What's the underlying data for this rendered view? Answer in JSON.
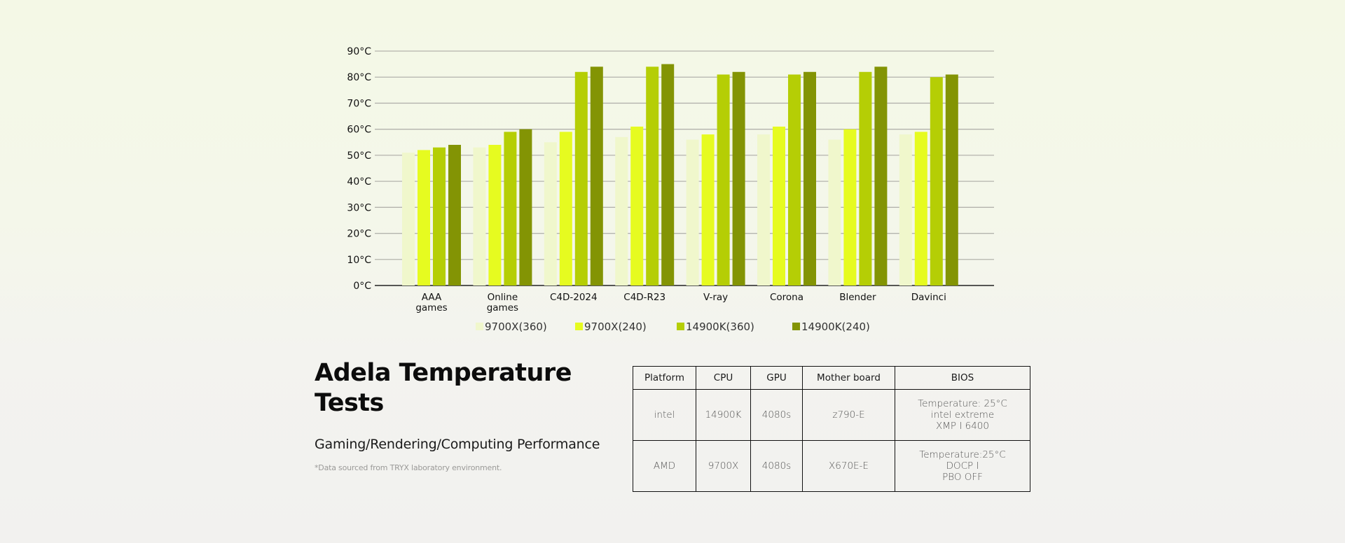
{
  "chart_data": {
    "type": "bar",
    "title": "",
    "xlabel": "",
    "ylabel": "",
    "ylim": [
      0,
      90
    ],
    "ytick_step": 10,
    "ytick_suffix": "°C",
    "grid": true,
    "legend_position": "bottom",
    "categories": [
      "AAA\ngames",
      "Online\ngames",
      "C4D-2024",
      "C4D-R23",
      "V-ray",
      "Corona",
      "Blender",
      "Davinci"
    ],
    "series": [
      {
        "name": "9700X(360)",
        "color": "#f0f7cc",
        "values": [
          51,
          53,
          55,
          57,
          56,
          58,
          56,
          58
        ]
      },
      {
        "name": "9700X(240)",
        "color": "#e6fb20",
        "values": [
          52,
          54,
          59,
          61,
          58,
          61,
          60,
          59
        ]
      },
      {
        "name": "14900K(360)",
        "color": "#b5ce05",
        "values": [
          53,
          59,
          82,
          84,
          81,
          81,
          82,
          80
        ]
      },
      {
        "name": "14900K(240)",
        "color": "#839404",
        "values": [
          54,
          60,
          84,
          85,
          82,
          82,
          84,
          81
        ]
      }
    ]
  },
  "info": {
    "title_line1": "Adela Temperature",
    "title_line2": "Tests",
    "subtitle": "Gaming/Rendering/Computing Performance",
    "note": "*Data sourced from TRYX laboratory environment."
  },
  "spec_table": {
    "headers": [
      "Platform",
      "CPU",
      "GPU",
      "Mother board",
      "BIOS"
    ],
    "rows": [
      {
        "platform": "intel",
        "cpu": "14900K",
        "gpu": "4080s",
        "motherboard": "z790-E",
        "bios": [
          "Temperature: 25°C",
          "intel extreme",
          "XMP I 6400"
        ]
      },
      {
        "platform": "AMD",
        "cpu": "9700X",
        "gpu": "4080s",
        "motherboard": "X670E-E",
        "bios": [
          "Temperature:25°C",
          "DOCP I",
          "PBO OFF"
        ]
      }
    ]
  }
}
